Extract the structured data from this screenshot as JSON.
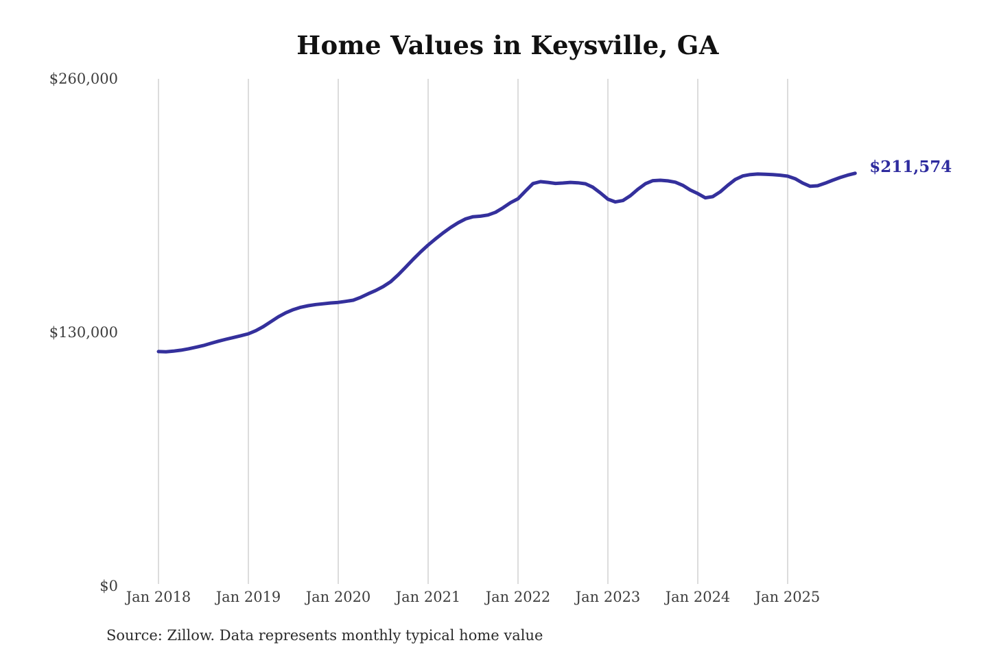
{
  "chart_data": {
    "type": "line",
    "title": "Home Values in Keysville, GA",
    "end_label": "$211,574",
    "end_value": 211574,
    "source": "Source: Zillow. Data represents monthly typical home value",
    "x_start": "Jan 2018",
    "x_end": "Oct 2025",
    "x_interval": "monthly",
    "ylim": [
      0,
      260000
    ],
    "grid": "vertical-only",
    "legend": "none",
    "colors": {
      "line": "#34309c",
      "end_label": "#2e2b9e",
      "grid": "#c9c9c9",
      "tick_text": "#3d3d3d",
      "title_text": "#111111",
      "source_text": "#2b2b2b",
      "background": "#ffffff"
    },
    "y_ticks": [
      {
        "label": "$0",
        "value": 0
      },
      {
        "label": "$130,000",
        "value": 130000
      },
      {
        "label": "$260,000",
        "value": 260000
      }
    ],
    "x_ticks": [
      {
        "label": "Jan 2018",
        "month_index": 0
      },
      {
        "label": "Jan 2019",
        "month_index": 12
      },
      {
        "label": "Jan 2020",
        "month_index": 24
      },
      {
        "label": "Jan 2021",
        "month_index": 36
      },
      {
        "label": "Jan 2022",
        "month_index": 48
      },
      {
        "label": "Jan 2023",
        "month_index": 60
      },
      {
        "label": "Jan 2024",
        "month_index": 72
      },
      {
        "label": "Jan 2025",
        "month_index": 84
      }
    ],
    "series": [
      {
        "name": "Typical home value",
        "values": [
          120200,
          120100,
          120400,
          120900,
          121600,
          122400,
          123300,
          124400,
          125500,
          126500,
          127400,
          128300,
          129300,
          130900,
          133000,
          135500,
          138000,
          140100,
          141700,
          142900,
          143700,
          144300,
          144700,
          145100,
          145400,
          145900,
          146500,
          148000,
          149800,
          151500,
          153500,
          156000,
          159500,
          163500,
          167500,
          171300,
          174800,
          178000,
          181000,
          183800,
          186200,
          188200,
          189300,
          189600,
          190200,
          191600,
          193900,
          196500,
          198500,
          202500,
          206300,
          207300,
          206900,
          206400,
          206600,
          206900,
          206700,
          206200,
          204400,
          201500,
          198300,
          196900,
          197600,
          200100,
          203400,
          206200,
          207800,
          208000,
          207700,
          207000,
          205400,
          203000,
          201200,
          199000,
          199600,
          202100,
          205400,
          208400,
          210200,
          210900,
          211200,
          211100,
          210900,
          210600,
          210100,
          208800,
          206600,
          204900,
          205200,
          206500,
          208000,
          209400,
          210600,
          211574
        ]
      }
    ]
  }
}
